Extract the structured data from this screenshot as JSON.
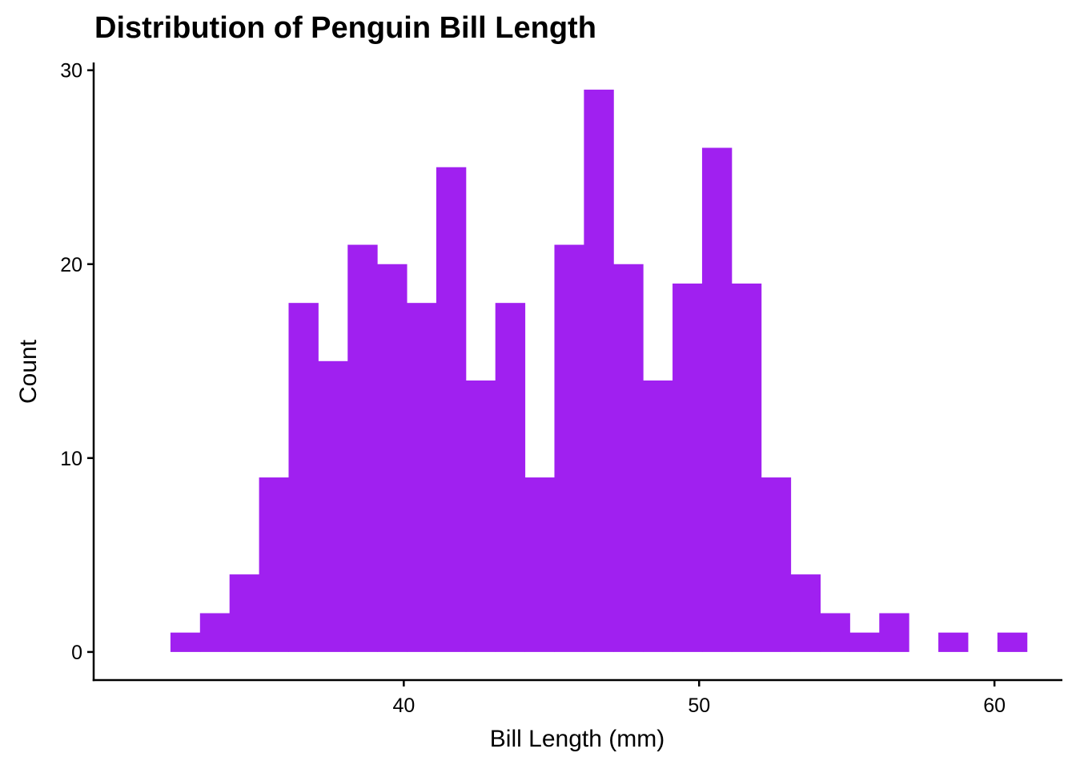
{
  "chart_data": {
    "type": "bar",
    "title": "Distribution of Penguin Bill Length",
    "xlabel": "Bill Length (mm)",
    "ylabel": "Count",
    "xlim": [
      29.5,
      62.3
    ],
    "ylim": [
      -1.45,
      30.4
    ],
    "xticks": [
      40,
      50,
      60
    ],
    "yticks": [
      0,
      10,
      20,
      30
    ],
    "bin_width": 1,
    "bins": [
      {
        "x0": 32.1,
        "x1": 33.1,
        "count": 1
      },
      {
        "x0": 33.1,
        "x1": 34.1,
        "count": 2
      },
      {
        "x0": 34.1,
        "x1": 35.1,
        "count": 4
      },
      {
        "x0": 35.1,
        "x1": 36.1,
        "count": 9
      },
      {
        "x0": 36.1,
        "x1": 37.1,
        "count": 18
      },
      {
        "x0": 37.1,
        "x1": 38.1,
        "count": 15
      },
      {
        "x0": 38.1,
        "x1": 39.1,
        "count": 21
      },
      {
        "x0": 39.1,
        "x1": 40.1,
        "count": 20
      },
      {
        "x0": 40.1,
        "x1": 41.1,
        "count": 18
      },
      {
        "x0": 41.1,
        "x1": 42.1,
        "count": 25
      },
      {
        "x0": 42.1,
        "x1": 43.1,
        "count": 14
      },
      {
        "x0": 43.1,
        "x1": 44.1,
        "count": 18
      },
      {
        "x0": 44.1,
        "x1": 45.1,
        "count": 9
      },
      {
        "x0": 45.1,
        "x1": 46.1,
        "count": 21
      },
      {
        "x0": 46.1,
        "x1": 47.1,
        "count": 29
      },
      {
        "x0": 47.1,
        "x1": 48.1,
        "count": 20
      },
      {
        "x0": 48.1,
        "x1": 49.1,
        "count": 14
      },
      {
        "x0": 49.1,
        "x1": 50.1,
        "count": 19
      },
      {
        "x0": 50.1,
        "x1": 51.1,
        "count": 26
      },
      {
        "x0": 51.1,
        "x1": 52.1,
        "count": 19
      },
      {
        "x0": 52.1,
        "x1": 53.1,
        "count": 9
      },
      {
        "x0": 53.1,
        "x1": 54.1,
        "count": 4
      },
      {
        "x0": 54.1,
        "x1": 55.1,
        "count": 2
      },
      {
        "x0": 55.1,
        "x1": 56.1,
        "count": 1
      },
      {
        "x0": 56.1,
        "x1": 57.1,
        "count": 2
      },
      {
        "x0": 57.1,
        "x1": 58.1,
        "count": 0
      },
      {
        "x0": 58.1,
        "x1": 59.1,
        "count": 1
      },
      {
        "x0": 59.1,
        "x1": 60.1,
        "count": 0
      },
      {
        "x0": 60.1,
        "x1": 61.1,
        "count": 1
      }
    ],
    "bar_color": "#A020F0",
    "grid": false,
    "legend": "none"
  }
}
